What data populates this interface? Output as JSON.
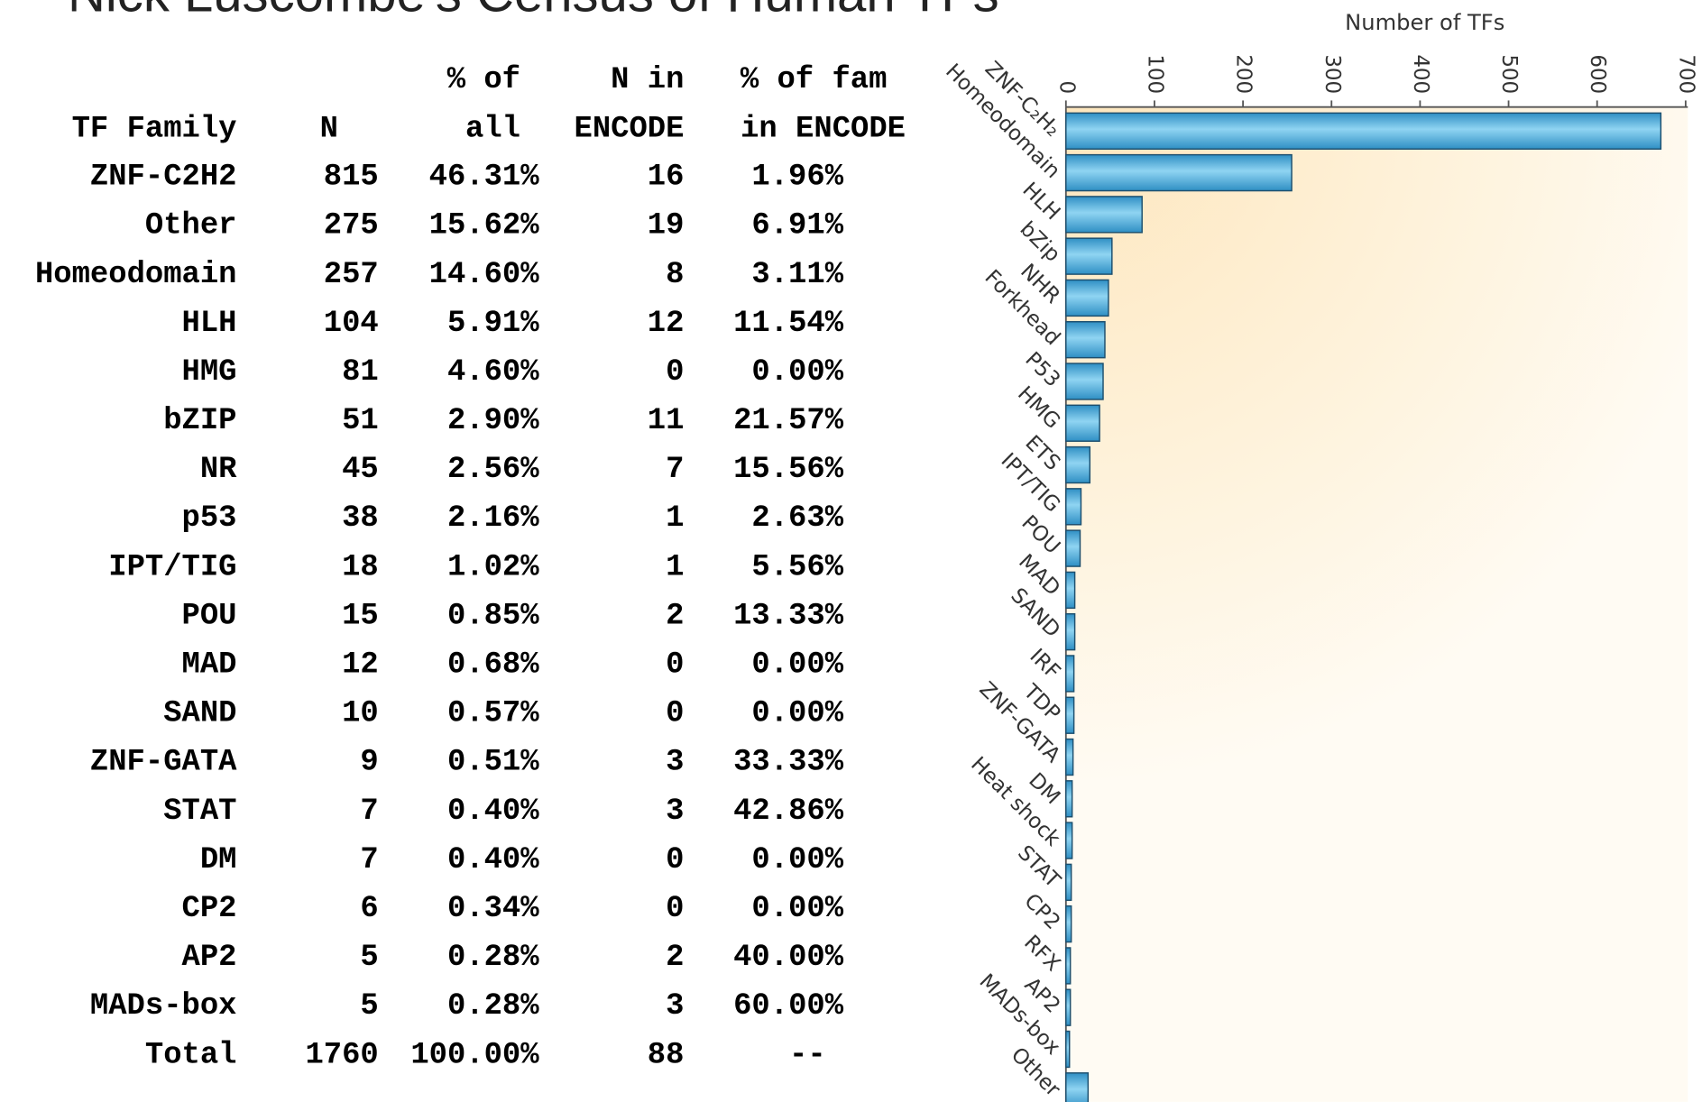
{
  "title": "Nick Luscombe's Census of Human TFs",
  "table": {
    "header_top": [
      "% of",
      "N in",
      "% of fam"
    ],
    "header": [
      "TF Family",
      "N",
      "all",
      "ENCODE",
      "in ENCODE"
    ],
    "rows": [
      [
        "ZNF-C2H2",
        "815",
        "46.31%",
        "16",
        "1.96%"
      ],
      [
        "Other",
        "275",
        "15.62%",
        "19",
        "6.91%"
      ],
      [
        "Homeodomain",
        "257",
        "14.60%",
        "8",
        "3.11%"
      ],
      [
        "HLH",
        "104",
        "5.91%",
        "12",
        "11.54%"
      ],
      [
        "HMG",
        "81",
        "4.60%",
        "0",
        "0.00%"
      ],
      [
        "bZIP",
        "51",
        "2.90%",
        "11",
        "21.57%"
      ],
      [
        "NR",
        "45",
        "2.56%",
        "7",
        "15.56%"
      ],
      [
        "p53",
        "38",
        "2.16%",
        "1",
        "2.63%"
      ],
      [
        "IPT/TIG",
        "18",
        "1.02%",
        "1",
        "5.56%"
      ],
      [
        "POU",
        "15",
        "0.85%",
        "2",
        "13.33%"
      ],
      [
        "MAD",
        "12",
        "0.68%",
        "0",
        "0.00%"
      ],
      [
        "SAND",
        "10",
        "0.57%",
        "0",
        "0.00%"
      ],
      [
        "ZNF-GATA",
        "9",
        "0.51%",
        "3",
        "33.33%"
      ],
      [
        "STAT",
        "7",
        "0.40%",
        "3",
        "42.86%"
      ],
      [
        "DM",
        "7",
        "0.40%",
        "0",
        "0.00%"
      ],
      [
        "CP2",
        "6",
        "0.34%",
        "0",
        "0.00%"
      ],
      [
        "AP2",
        "5",
        "0.28%",
        "2",
        "40.00%"
      ],
      [
        "MADs-box",
        "5",
        "0.28%",
        "3",
        "60.00%"
      ],
      [
        "Total",
        "1760",
        "100.00%",
        "88",
        "--"
      ]
    ]
  },
  "chart_data": {
    "type": "barh",
    "xlabel": "Number of TFs",
    "categories": [
      "ZNF-C₂H₂",
      "Homeodomain",
      "HLH",
      "bZip",
      "NHR",
      "Forkhead",
      "P53",
      "HMG",
      "ETS",
      "IPT/TIG",
      "POU",
      "MAD",
      "SAND",
      "IRF",
      "TDP",
      "ZNF-GATA",
      "DM",
      "Heat shock",
      "STAT",
      "CP2",
      "RFX",
      "AP2",
      "MADs-box",
      "Other"
    ],
    "values": [
      672,
      255,
      86,
      52,
      48,
      44,
      42,
      38,
      27,
      17,
      16,
      10,
      10,
      9,
      9,
      8,
      7,
      7,
      6,
      6,
      5,
      5,
      4,
      25
    ],
    "color": "#4fb3e0",
    "xlim": [
      0,
      700
    ],
    "xticks": [
      0,
      100,
      200,
      300,
      400,
      500,
      600,
      700
    ]
  }
}
